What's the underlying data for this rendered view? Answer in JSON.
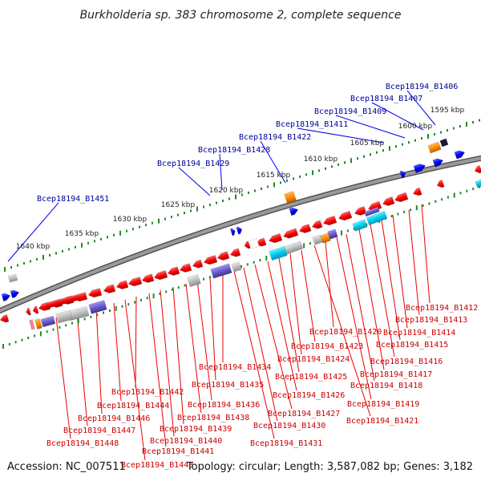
{
  "title": "Burkholderia sp. 383 chromosome 2, complete sequence",
  "footer": {
    "accession": "Accession: NC_007511",
    "summary": "Topology: circular; Length: 3,587,082 bp; Genes: 3,182"
  },
  "scale_labels": [
    "1595 kbp",
    "1600 kbp",
    "1605 kbp",
    "1610 kbp",
    "1615 kbp",
    "1620 kbp",
    "1625 kbp",
    "1630 kbp",
    "1635 kbp",
    "1640 kbp"
  ],
  "outer_labels": [
    "Bcep18194_B1406",
    "Bcep18194_B1407",
    "Bcep18194_B1409",
    "Bcep18194_B1411",
    "Bcep18194_B1422",
    "Bcep18194_B1428",
    "Bcep18194_B1429",
    "Bcep18194_B1451"
  ],
  "inner_labels": [
    "Bcep18194_B1412",
    "Bcep18194_B1413",
    "Bcep18194_B1414",
    "Bcep18194_B1415",
    "Bcep18194_B1416",
    "Bcep18194_B1417",
    "Bcep18194_B1418",
    "Bcep18194_B1419",
    "Bcep18194_B1420",
    "Bcep18194_B1421",
    "Bcep18194_B1423",
    "Bcep18194_B1424",
    "Bcep18194_B1425",
    "Bcep18194_B1426",
    "Bcep18194_B1427",
    "Bcep18194_B1430",
    "Bcep18194_B1431",
    "Bcep18194_B1434",
    "Bcep18194_B1435",
    "Bcep18194_B1436",
    "Bcep18194_B1438",
    "Bcep18194_B1439",
    "Bcep18194_B1440",
    "Bcep18194_B1441",
    "Bcep18194_B1442",
    "Bcep18194_B1443",
    "Bcep18194_B1444",
    "Bcep18194_B1446",
    "Bcep18194_B1447",
    "Bcep18194_B1448"
  ],
  "colors": {
    "forward_genes": "#ff0000",
    "reverse_genes": "#0000ff",
    "outer_label": "#000099",
    "inner_label": "#cc0000",
    "backbone": "#777777",
    "scale_ticks": "#228b22",
    "orange_feature": "#ff8c00",
    "cyan_feature": "#00ccee",
    "purple_feature": "#6a5acd",
    "gray_feature": "#bbbbbb"
  }
}
